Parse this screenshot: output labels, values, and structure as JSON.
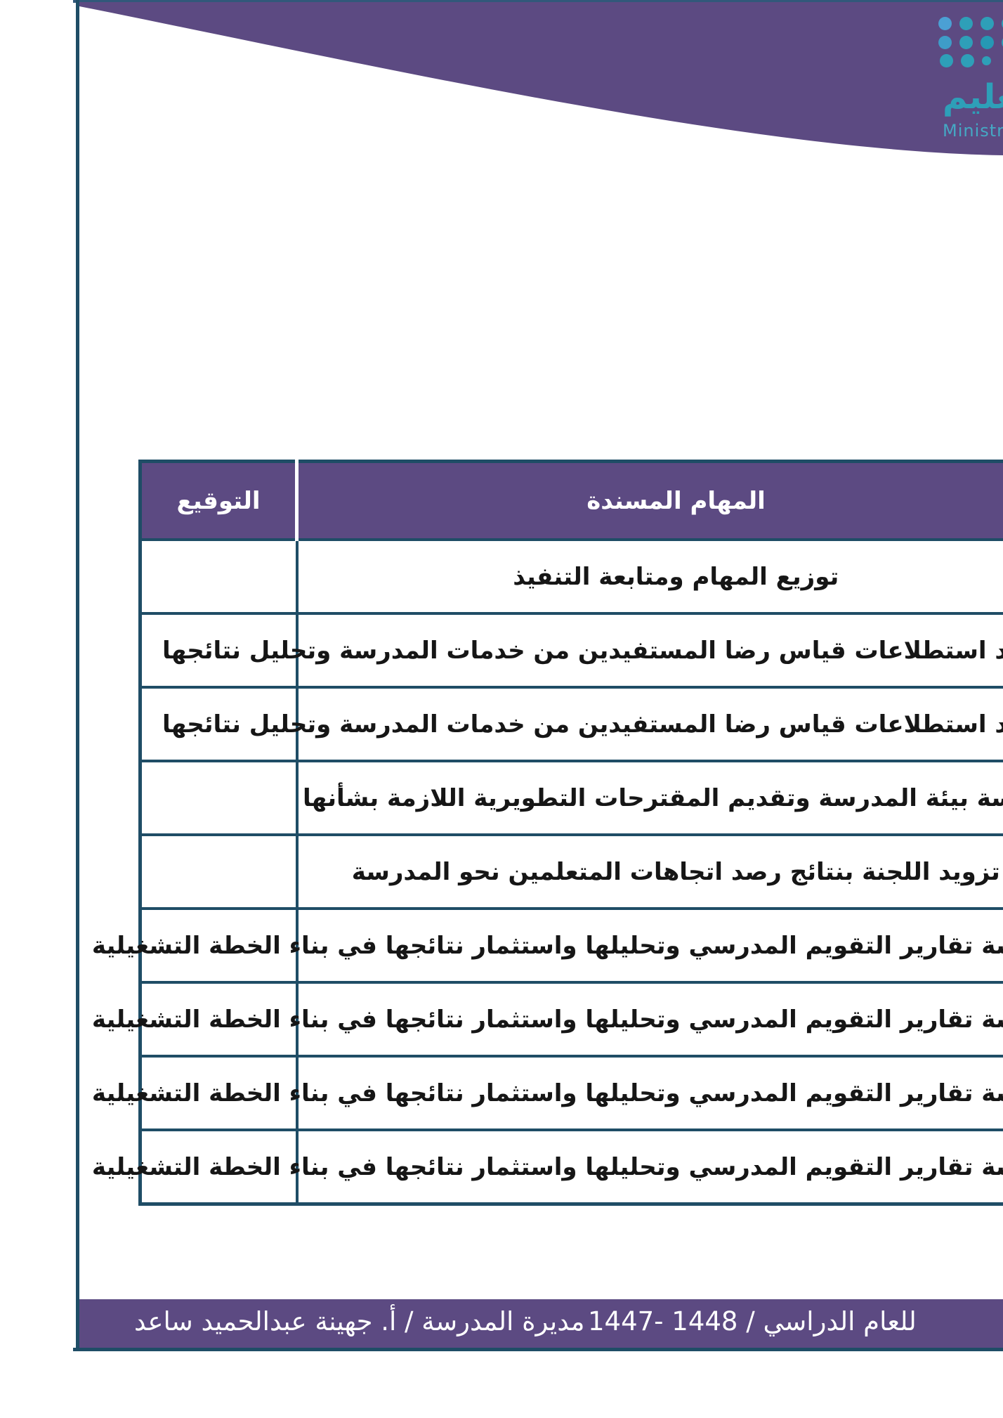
{
  "colors": {
    "brand_purple": "#5C4A82",
    "table_border": "#1F4D66",
    "logo_teal": "#2E9FB8",
    "logo_blue": "#4BA0D4",
    "header_text": "#FFFFFF",
    "body_text": "#161616"
  },
  "header": {
    "logo": {
      "arabic_wordmark": "تعليم",
      "english_wordmark": "Ministry of Education"
    }
  },
  "table": {
    "columns": [
      {
        "key": "task",
        "label": "المهام المسندة"
      },
      {
        "key": "signature",
        "label": "التوقيع"
      }
    ],
    "rows": [
      {
        "task": "توزيع المهام ومتابعة التنفيذ",
        "signature": ""
      },
      {
        "task": "إعداد استطلاعات قياس رضا المستفيدين من خدمات المدرسة وتحليل نتائجها",
        "signature": ""
      },
      {
        "task": "إعداد استطلاعات قياس رضا المستفيدين من خدمات المدرسة وتحليل نتائجها",
        "signature": ""
      },
      {
        "task": "دراسة بيئة المدرسة وتقديم المقترحات التطويرية اللازمة بشأنها",
        "signature": ""
      },
      {
        "task": "تزويد اللجنة بنتائج رصد اتجاهات المتعلمين نحو المدرسة",
        "signature": ""
      },
      {
        "task": "دراسة تقارير التقويم المدرسي وتحليلها واستثمار نتائجها في بناء الخطة التشغيلية",
        "signature": ""
      },
      {
        "task": "دراسة تقارير التقويم المدرسي وتحليلها واستثمار نتائجها في بناء الخطة التشغيلية",
        "signature": ""
      },
      {
        "task": "دراسة تقارير التقويم المدرسي وتحليلها واستثمار نتائجها في بناء الخطة التشغيلية",
        "signature": ""
      },
      {
        "task": "دراسة تقارير التقويم المدرسي وتحليلها واستثمار نتائجها في بناء الخطة التشغيلية",
        "signature": ""
      }
    ]
  },
  "footer": {
    "academic_year_text": "للعام الدراسي /   1448 -1447",
    "principal_text": "مديرة المدرسة / أ. جهينة عبدالحميد ساعد"
  }
}
